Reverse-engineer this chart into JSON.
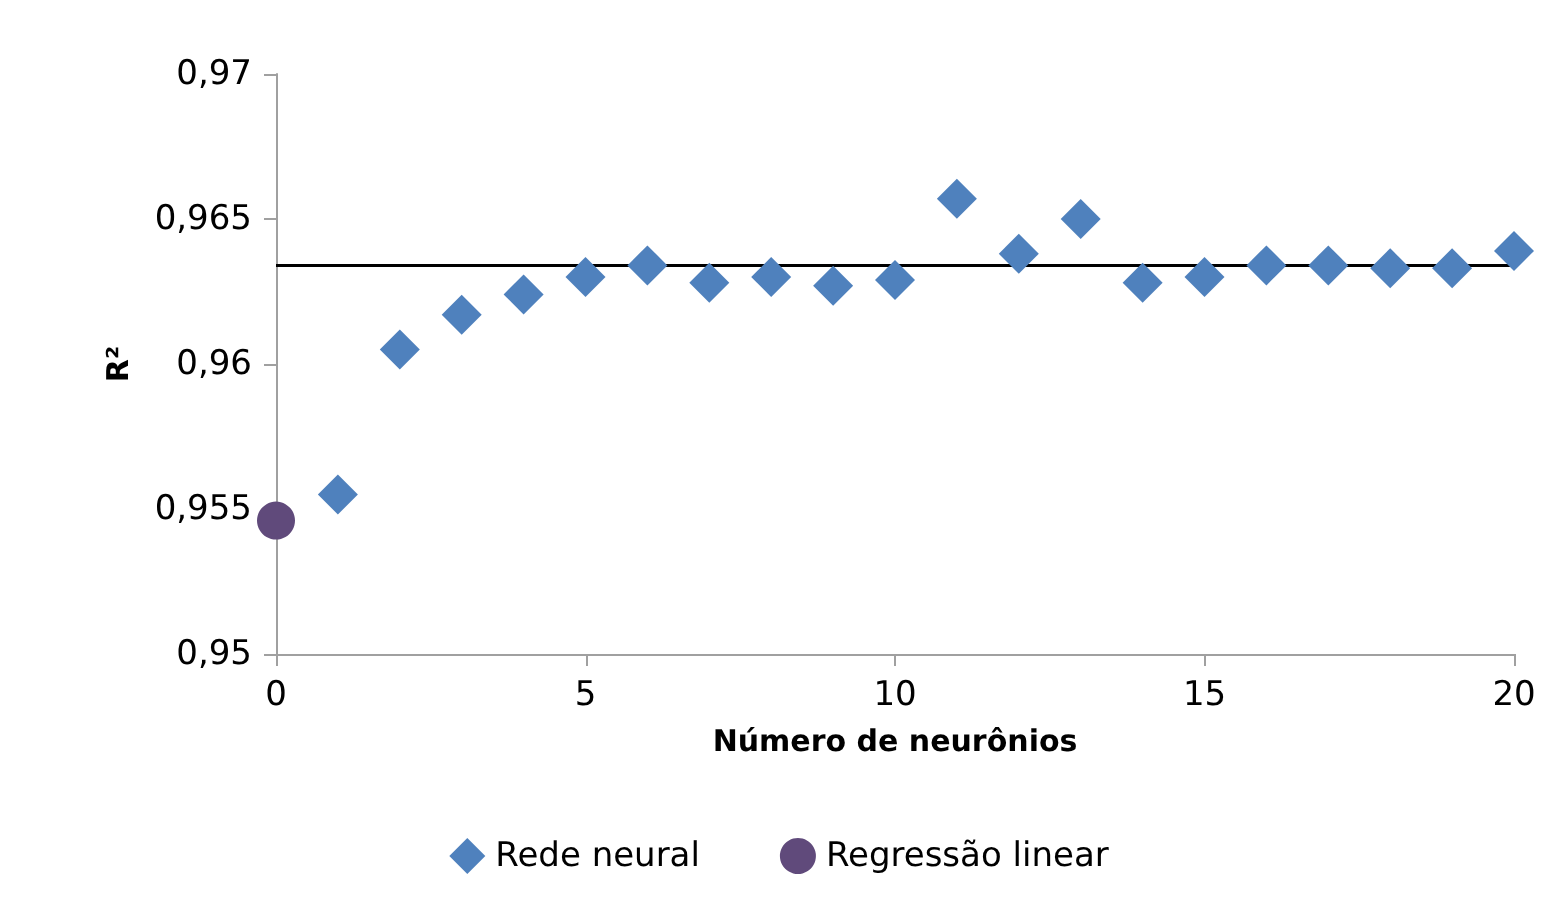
{
  "chart_data": {
    "type": "scatter",
    "xlabel": "Número de neurônios",
    "ylabel": "R²",
    "xlim": [
      0,
      20
    ],
    "xticks": [
      0,
      5,
      10,
      15,
      20
    ],
    "ylim": [
      0.95,
      0.97
    ],
    "yticks": [
      {
        "value": 0.95,
        "label": "0,95"
      },
      {
        "value": 0.955,
        "label": "0,955"
      },
      {
        "value": 0.96,
        "label": "0,96"
      },
      {
        "value": 0.965,
        "label": "0,965"
      },
      {
        "value": 0.97,
        "label": "0,97"
      }
    ],
    "series": [
      {
        "name": "Rede neural",
        "color": "#4f81bd",
        "marker": "diamond",
        "x": [
          1,
          2,
          3,
          4,
          5,
          6,
          7,
          8,
          9,
          10,
          11,
          12,
          13,
          14,
          15,
          16,
          17,
          18,
          19,
          20
        ],
        "values": [
          0.9555,
          0.9605,
          0.9617,
          0.9624,
          0.963,
          0.9634,
          0.9628,
          0.963,
          0.9627,
          0.9629,
          0.9657,
          0.9638,
          0.965,
          0.9628,
          0.963,
          0.9634,
          0.9634,
          0.9633,
          0.9633,
          0.9639
        ]
      },
      {
        "name": "Regressão linear",
        "color": "#604a7b",
        "marker": "circle",
        "x": [
          0
        ],
        "values": [
          0.9546
        ]
      }
    ],
    "ref_lines": [
      {
        "axis": "y",
        "value": 0.9634,
        "color": "#000000",
        "line_style": "solid"
      }
    ],
    "grid": false,
    "legend": "bottom"
  }
}
